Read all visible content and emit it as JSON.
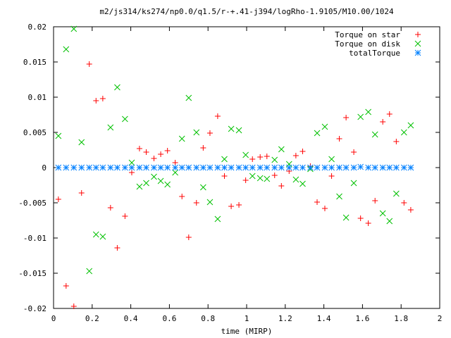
{
  "chart_data": {
    "type": "scatter",
    "title": "m2/js314/ks274/np0.0/q1.5/r-+.41-j394/logRho-1.9105/M10.00/1024",
    "xlabel": "time (MIRP)",
    "ylabel": "",
    "xlim": [
      0,
      2
    ],
    "ylim": [
      -0.02,
      0.02
    ],
    "xticks": [
      "0",
      "0.2",
      "0.4",
      "0.6",
      "0.8",
      "1",
      "1.2",
      "1.4",
      "1.6",
      "1.8",
      "2"
    ],
    "yticks": [
      "-0.02",
      "-0.015",
      "-0.01",
      "-0.005",
      "0",
      "0.005",
      "0.01",
      "0.015",
      "0.02"
    ],
    "grid": false,
    "legend_position": "top-right",
    "x": [
      0.025,
      0.065,
      0.105,
      0.145,
      0.185,
      0.22,
      0.255,
      0.295,
      0.33,
      0.37,
      0.405,
      0.445,
      0.48,
      0.52,
      0.555,
      0.59,
      0.63,
      0.665,
      0.7,
      0.74,
      0.775,
      0.81,
      0.85,
      0.885,
      0.92,
      0.96,
      0.995,
      1.03,
      1.07,
      1.105,
      1.145,
      1.18,
      1.22,
      1.255,
      1.29,
      1.33,
      1.365,
      1.405,
      1.44,
      1.48,
      1.515,
      1.555,
      1.59,
      1.63,
      1.665,
      1.705,
      1.74,
      1.775,
      1.815,
      1.85
    ],
    "series": [
      {
        "name": "Torque on star",
        "marker": "plus",
        "color": "#ff0000",
        "values": [
          -0.0045,
          -0.0168,
          -0.0197,
          -0.0036,
          0.0147,
          0.0095,
          0.0098,
          -0.0057,
          -0.0114,
          -0.0069,
          -0.0007,
          0.0027,
          0.0022,
          0.0013,
          0.0019,
          0.0024,
          0.0007,
          -0.0041,
          -0.0099,
          -0.005,
          0.0028,
          0.0049,
          0.0073,
          -0.0012,
          -0.0055,
          -0.0053,
          -0.0018,
          0.0012,
          0.0015,
          0.0016,
          -0.0011,
          -0.0026,
          -0.0005,
          0.0017,
          0.0023,
          0.0002,
          -0.0049,
          -0.0058,
          -0.0012,
          0.0041,
          0.0071,
          0.0022,
          -0.0072,
          -0.0079,
          -0.0047,
          0.0065,
          0.0076,
          0.0037,
          -0.005,
          -0.006
        ]
      },
      {
        "name": "Torque on disk",
        "marker": "cross",
        "color": "#00c000",
        "values": [
          0.0045,
          0.0168,
          0.0197,
          0.0036,
          -0.0147,
          -0.0095,
          -0.0098,
          0.0057,
          0.0114,
          0.0069,
          0.0007,
          -0.0027,
          -0.0022,
          -0.0013,
          -0.0019,
          -0.0024,
          -0.0007,
          0.0041,
          0.0099,
          0.005,
          -0.0028,
          -0.0049,
          -0.0073,
          0.0012,
          0.0055,
          0.0053,
          0.0018,
          -0.0012,
          -0.0015,
          -0.0016,
          0.0011,
          0.0026,
          0.0005,
          -0.0017,
          -0.0023,
          -0.0002,
          0.0049,
          0.0058,
          0.0012,
          -0.0041,
          -0.0071,
          -0.0022,
          0.0072,
          0.0079,
          0.0047,
          -0.0065,
          -0.0076,
          -0.0037,
          0.005,
          0.006
        ]
      },
      {
        "name": "totalTorque",
        "marker": "star",
        "color": "#0080ff",
        "values": [
          0,
          0,
          0,
          0,
          0,
          0,
          0,
          0,
          0,
          0,
          0,
          0,
          0,
          0,
          0,
          0,
          0,
          0,
          0,
          0,
          0,
          0,
          0,
          0,
          0,
          0,
          0,
          0,
          0,
          0,
          0,
          0,
          0,
          0,
          0,
          0,
          0,
          0,
          0,
          0,
          0,
          0,
          0.0001,
          0,
          0,
          0,
          0,
          0,
          0,
          0
        ]
      }
    ]
  }
}
